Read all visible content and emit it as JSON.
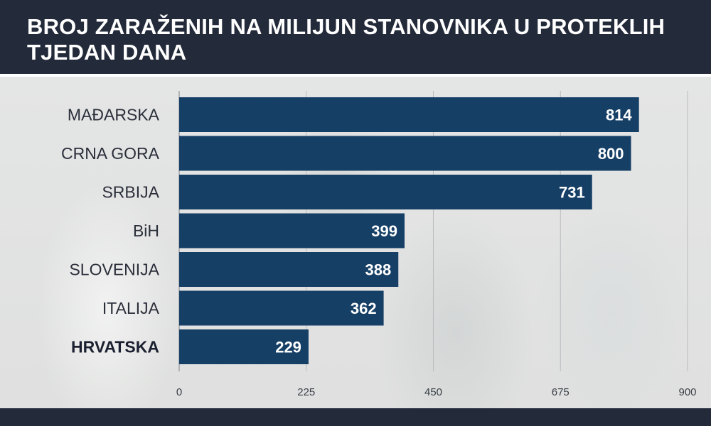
{
  "header": {
    "title": "BROJ ZARAŽENIH NA MILIJUN STANOVNIKA U PROTEKLIH TJEDAN DANA"
  },
  "colors": {
    "header_bg": "#232a3a",
    "bar": "#163f66",
    "gridline": "#b9bcbf"
  },
  "chart_data": {
    "type": "bar",
    "orientation": "horizontal",
    "title": "BROJ ZARAŽENIH NA MILIJUN STANOVNIKA U PROTEKLIH TJEDAN DANA",
    "categories": [
      "MAĐARSKA",
      "CRNA GORA",
      "SRBIJA",
      "BiH",
      "SLOVENIJA",
      "ITALIJA",
      "HRVATSKA"
    ],
    "values": [
      814,
      800,
      731,
      399,
      388,
      362,
      229
    ],
    "highlight": "HRVATSKA",
    "xlim": [
      0,
      900
    ],
    "xticks": [
      0,
      225,
      450,
      675,
      900
    ],
    "xlabel": "",
    "ylabel": "",
    "grid": true,
    "data_labels": true
  }
}
